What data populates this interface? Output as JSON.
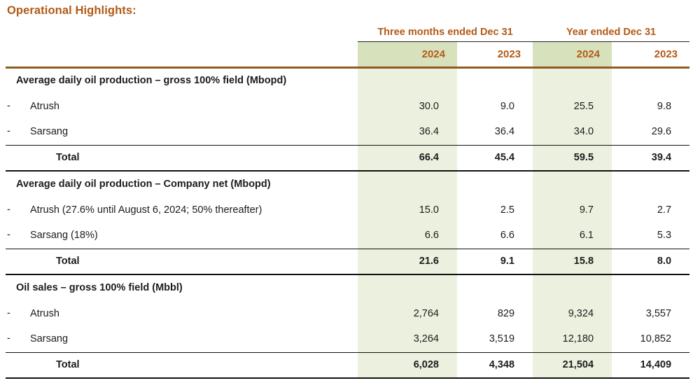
{
  "title": "Operational Highlights:",
  "colors": {
    "accent_brown": "#b25a16",
    "rule_brown": "#8f5c22",
    "header_green": "#d7e1bb",
    "body_green": "#ebf1de",
    "line_black": "#111111"
  },
  "table": {
    "col_groups": [
      {
        "label": "Three months ended Dec 31"
      },
      {
        "label": "Year ended Dec 31"
      }
    ],
    "year_headers": [
      "2024",
      "2023",
      "2024",
      "2023"
    ],
    "rows": [
      {
        "type": "section",
        "bullet": "",
        "label": "Average daily oil production – gross 100% field (Mbopd)",
        "values": [
          "",
          "",
          "",
          ""
        ]
      },
      {
        "type": "item",
        "bullet": "-",
        "label": "Atrush",
        "values": [
          "30.0",
          "9.0",
          "25.5",
          "9.8"
        ]
      },
      {
        "type": "item",
        "bullet": "-",
        "label": "Sarsang",
        "values": [
          "36.4",
          "36.4",
          "34.0",
          "29.6"
        ]
      },
      {
        "type": "total",
        "bullet": "",
        "label": "Total",
        "values": [
          "66.4",
          "45.4",
          "59.5",
          "39.4"
        ]
      },
      {
        "type": "section",
        "bullet": "",
        "label": "Average daily oil production – Company net (Mbopd)",
        "values": [
          "",
          "",
          "",
          ""
        ]
      },
      {
        "type": "item",
        "bullet": "-",
        "label": "Atrush (27.6% until August 6, 2024; 50% thereafter)",
        "values": [
          "15.0",
          "2.5",
          "9.7",
          "2.7"
        ]
      },
      {
        "type": "item",
        "bullet": "-",
        "label": "Sarsang (18%)",
        "values": [
          "6.6",
          "6.6",
          "6.1",
          "5.3"
        ]
      },
      {
        "type": "total",
        "bullet": "",
        "label": "Total",
        "values": [
          "21.6",
          "9.1",
          "15.8",
          "8.0"
        ]
      },
      {
        "type": "section",
        "bullet": "",
        "label": "Oil sales – gross 100% field (Mbbl)",
        "values": [
          "",
          "",
          "",
          ""
        ]
      },
      {
        "type": "item",
        "bullet": "-",
        "label": "Atrush",
        "values": [
          "2,764",
          "829",
          "9,324",
          "3,557"
        ]
      },
      {
        "type": "item",
        "bullet": "-",
        "label": "Sarsang",
        "values": [
          "3,264",
          "3,519",
          "12,180",
          "10,852"
        ]
      },
      {
        "type": "total",
        "bullet": "",
        "label": "Total",
        "values": [
          "6,028",
          "4,348",
          "21,504",
          "14,409"
        ]
      }
    ]
  }
}
